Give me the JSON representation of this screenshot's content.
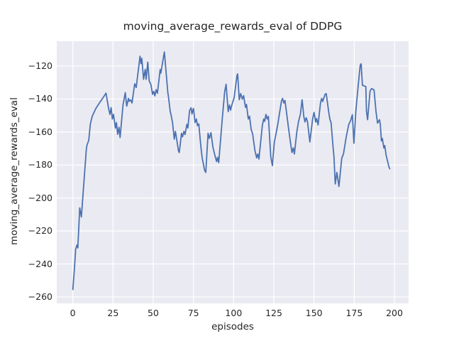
{
  "chart_data": {
    "type": "line",
    "title": "moving_average_rewards_eval of DDPG",
    "xlabel": "episodes",
    "ylabel": "moving_average_rewards_eval",
    "x_ticks": [
      0,
      25,
      50,
      75,
      100,
      125,
      150,
      175,
      200
    ],
    "y_ticks": [
      -260,
      -240,
      -220,
      -200,
      -180,
      -160,
      -140,
      -120
    ],
    "xlim": [
      -10,
      208.8
    ],
    "ylim": [
      -263.9,
      -104.9
    ],
    "grid": true,
    "legend_position": "none",
    "styles": {
      "axes_bg": "#eaeaf2",
      "grid_color": "#ffffff",
      "line_color": "#4c72b0",
      "text_color": "#262626",
      "figure_bg": "#ffffff",
      "line_width": 1.8
    },
    "series": [
      {
        "name": "moving_average_rewards_eval",
        "points": [
          [
            0,
            -255.5
          ],
          [
            1,
            -243
          ],
          [
            1.8,
            -231
          ],
          [
            2.6,
            -228.5
          ],
          [
            3.1,
            -230.3
          ],
          [
            4.3,
            -206
          ],
          [
            5.3,
            -211.5
          ],
          [
            8.4,
            -170.5
          ],
          [
            8.8,
            -168
          ],
          [
            9.9,
            -165
          ],
          [
            10.9,
            -155
          ],
          [
            12.1,
            -150.3
          ],
          [
            14.3,
            -145.7
          ],
          [
            16.5,
            -142.4
          ],
          [
            18.7,
            -139.3
          ],
          [
            20.6,
            -136.4
          ],
          [
            22.4,
            -146.4
          ],
          [
            23.1,
            -149.3
          ],
          [
            23.8,
            -145.2
          ],
          [
            24.6,
            -152.1
          ],
          [
            25.3,
            -149.3
          ],
          [
            26.5,
            -157.6
          ],
          [
            27.1,
            -154.3
          ],
          [
            27.9,
            -161.4
          ],
          [
            28.7,
            -157.1
          ],
          [
            29.4,
            -163.3
          ],
          [
            31.2,
            -143.6
          ],
          [
            32.6,
            -136.1
          ],
          [
            33.5,
            -144.3
          ],
          [
            34.6,
            -139.6
          ],
          [
            35.1,
            -141.4
          ],
          [
            35.9,
            -140.4
          ],
          [
            36.8,
            -142.4
          ],
          [
            38.5,
            -130.7
          ],
          [
            39.4,
            -133
          ],
          [
            41.8,
            -114
          ],
          [
            42.4,
            -118.5
          ],
          [
            42.9,
            -115.3
          ],
          [
            44,
            -128
          ],
          [
            45,
            -122
          ],
          [
            45.6,
            -128
          ],
          [
            46.6,
            -117.6
          ],
          [
            47.5,
            -129
          ],
          [
            48.5,
            -131
          ],
          [
            49.6,
            -137.1
          ],
          [
            50.3,
            -135.3
          ],
          [
            51,
            -138.1
          ],
          [
            51.8,
            -134.3
          ],
          [
            52.6,
            -136.5
          ],
          [
            54.3,
            -122.1
          ],
          [
            54.7,
            -124.3
          ],
          [
            56.9,
            -111.4
          ],
          [
            59.1,
            -136.1
          ],
          [
            59.4,
            -138
          ],
          [
            60.6,
            -147.6
          ],
          [
            61,
            -149.3
          ],
          [
            62,
            -154.3
          ],
          [
            63.1,
            -164.3
          ],
          [
            63.8,
            -159.6
          ],
          [
            64.7,
            -165
          ],
          [
            65.7,
            -171.4
          ],
          [
            66.2,
            -172.4
          ],
          [
            67.6,
            -160.7
          ],
          [
            68.2,
            -162.9
          ],
          [
            69.1,
            -159.6
          ],
          [
            69.8,
            -161.5
          ],
          [
            70.9,
            -155.3
          ],
          [
            71.5,
            -157.5
          ],
          [
            72.6,
            -147.1
          ],
          [
            73.5,
            -145.3
          ],
          [
            74.1,
            -149
          ],
          [
            75,
            -145.7
          ],
          [
            76,
            -154.3
          ],
          [
            76.8,
            -152.1
          ],
          [
            77.5,
            -156.1
          ],
          [
            78.3,
            -155
          ],
          [
            79.7,
            -169.3
          ],
          [
            80.4,
            -175.3
          ],
          [
            81.9,
            -183
          ],
          [
            82.7,
            -184.5
          ],
          [
            84.1,
            -160.7
          ],
          [
            84.9,
            -163.9
          ],
          [
            85.9,
            -160.4
          ],
          [
            87.1,
            -169
          ],
          [
            88.2,
            -173.6
          ],
          [
            89.4,
            -177.9
          ],
          [
            90,
            -175.3
          ],
          [
            90.7,
            -178.6
          ],
          [
            92.2,
            -160.7
          ],
          [
            92.9,
            -152.1
          ],
          [
            94.4,
            -135.7
          ],
          [
            95.3,
            -131
          ],
          [
            96.6,
            -147.6
          ],
          [
            97.4,
            -143.6
          ],
          [
            98.1,
            -146.7
          ],
          [
            98.8,
            -143.9
          ],
          [
            100.3,
            -139.3
          ],
          [
            102.1,
            -125.7
          ],
          [
            102.5,
            -124.7
          ],
          [
            103.5,
            -140.4
          ],
          [
            104.4,
            -136.7
          ],
          [
            105.4,
            -140
          ],
          [
            106.2,
            -137.9
          ],
          [
            107.4,
            -145
          ],
          [
            108,
            -143.3
          ],
          [
            109.1,
            -152.1
          ],
          [
            109.9,
            -150.4
          ],
          [
            110.9,
            -158.6
          ],
          [
            111.8,
            -161
          ],
          [
            113.2,
            -171
          ],
          [
            114.3,
            -175.7
          ],
          [
            115,
            -173.3
          ],
          [
            115.7,
            -176.4
          ],
          [
            117.9,
            -155.7
          ],
          [
            118.7,
            -152.1
          ],
          [
            119.3,
            -153.5
          ],
          [
            120.1,
            -149.3
          ],
          [
            120.9,
            -152.1
          ],
          [
            121.6,
            -150.5
          ],
          [
            123.1,
            -175
          ],
          [
            124.1,
            -180.4
          ],
          [
            125.3,
            -166.1
          ],
          [
            126.5,
            -160.4
          ],
          [
            127.5,
            -155
          ],
          [
            129.7,
            -141.4
          ],
          [
            130.4,
            -139.6
          ],
          [
            131.2,
            -142.4
          ],
          [
            131.9,
            -140.8
          ],
          [
            133.4,
            -152.1
          ],
          [
            134.1,
            -157.6
          ],
          [
            135.3,
            -166.1
          ],
          [
            136.3,
            -172.4
          ],
          [
            137.1,
            -169.6
          ],
          [
            137.8,
            -173.3
          ],
          [
            139.3,
            -160
          ],
          [
            140.3,
            -153.9
          ],
          [
            141.5,
            -149.3
          ],
          [
            142.6,
            -140.4
          ],
          [
            143.7,
            -151
          ],
          [
            144.4,
            -153.9
          ],
          [
            145.1,
            -151.3
          ],
          [
            145.9,
            -153.5
          ],
          [
            147.4,
            -166
          ],
          [
            149.1,
            -152.1
          ],
          [
            150,
            -148.1
          ],
          [
            151,
            -153.9
          ],
          [
            151.6,
            -151.8
          ],
          [
            152.5,
            -155.7
          ],
          [
            154,
            -142.4
          ],
          [
            154.7,
            -139.6
          ],
          [
            155.4,
            -141.5
          ],
          [
            156.9,
            -137.1
          ],
          [
            157.6,
            -136.7
          ],
          [
            159.1,
            -147.6
          ],
          [
            159.9,
            -152.4
          ],
          [
            160.6,
            -154.3
          ],
          [
            161.8,
            -169
          ],
          [
            162.4,
            -175
          ],
          [
            163.2,
            -191.5
          ],
          [
            164.2,
            -184.5
          ],
          [
            165.5,
            -193
          ],
          [
            167.2,
            -176
          ],
          [
            168.3,
            -173.2
          ],
          [
            170.1,
            -162.4
          ],
          [
            171.6,
            -155.3
          ],
          [
            172.7,
            -153.1
          ],
          [
            173.8,
            -149.5
          ],
          [
            174.8,
            -166.8
          ],
          [
            176,
            -147.4
          ],
          [
            177.5,
            -131.6
          ],
          [
            178.7,
            -119.4
          ],
          [
            179.3,
            -118.6
          ],
          [
            180.1,
            -131.6
          ],
          [
            182.2,
            -132.4
          ],
          [
            182.6,
            -147.4
          ],
          [
            183.3,
            -152.5
          ],
          [
            184.8,
            -135.2
          ],
          [
            185.8,
            -133.6
          ],
          [
            187.3,
            -134.5
          ],
          [
            188.5,
            -147.4
          ],
          [
            189.5,
            -154.6
          ],
          [
            190.7,
            -152.5
          ],
          [
            191.2,
            -155.3
          ],
          [
            191.9,
            -165.4
          ],
          [
            192.5,
            -163.9
          ],
          [
            193.4,
            -169.7
          ],
          [
            194,
            -168.2
          ],
          [
            194.8,
            -174
          ],
          [
            196.6,
            -181.2
          ],
          [
            197.1,
            -182.3
          ]
        ]
      }
    ]
  }
}
